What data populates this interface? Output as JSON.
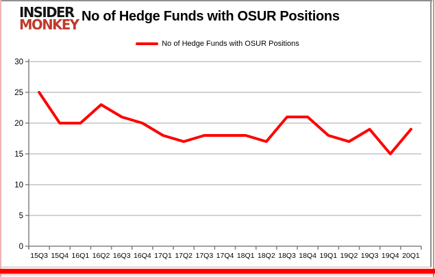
{
  "header": {
    "logo_line1": "INSIDER",
    "logo_line2": "MONKEY",
    "title": "No of Hedge Funds with OSUR Positions"
  },
  "legend": {
    "label": "No of Hedge Funds with OSUR Positions",
    "line_color": "#ff0000"
  },
  "chart_data": {
    "type": "line",
    "title": "No of Hedge Funds with OSUR Positions",
    "categories": [
      "15Q3",
      "15Q4",
      "16Q1",
      "16Q2",
      "16Q3",
      "16Q4",
      "17Q1",
      "17Q2",
      "17Q3",
      "17Q4",
      "18Q1",
      "18Q2",
      "18Q3",
      "18Q4",
      "19Q1",
      "19Q2",
      "19Q3",
      "19Q4",
      "20Q1"
    ],
    "series": [
      {
        "name": "No of Hedge Funds with OSUR Positions",
        "color": "#ff0000",
        "values": [
          25,
          20,
          20,
          23,
          21,
          20,
          18,
          17,
          18,
          18,
          18,
          17,
          21,
          21,
          18,
          17,
          19,
          15,
          19
        ]
      }
    ],
    "xlabel": "",
    "ylabel": "",
    "ylim": [
      0,
      30
    ],
    "yticks": [
      0,
      5,
      10,
      15,
      20,
      25,
      30
    ],
    "grid": true,
    "legend_position": "top",
    "gridline_color": "#a6a6a6",
    "axis_color": "#808080",
    "tick_label_color": "#000000"
  }
}
